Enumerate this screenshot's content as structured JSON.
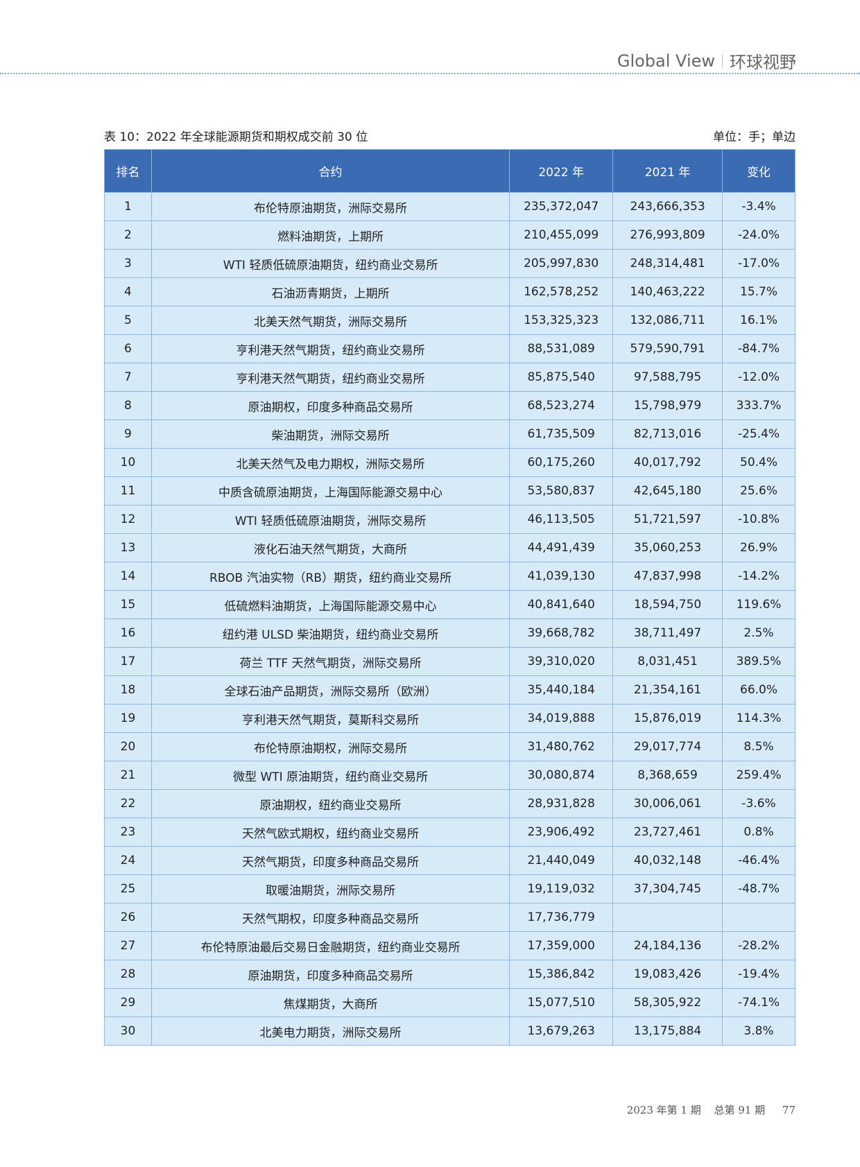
{
  "header": {
    "section_en": "Global View",
    "section_cn": "环球视野"
  },
  "table": {
    "caption": "表 10：2022 年全球能源期货和期权成交前 30 位",
    "unit": "单位：手；单边",
    "columns": [
      "排名",
      "合约",
      "2022 年",
      "2021 年",
      "变化"
    ],
    "rows": [
      [
        "1",
        "布伦特原油期货，洲际交易所",
        "235,372,047",
        "243,666,353",
        "-3.4%"
      ],
      [
        "2",
        "燃料油期货，上期所",
        "210,455,099",
        "276,993,809",
        "-24.0%"
      ],
      [
        "3",
        "WTI 轻质低硫原油期货，纽约商业交易所",
        "205,997,830",
        "248,314,481",
        "-17.0%"
      ],
      [
        "4",
        "石油沥青期货，上期所",
        "162,578,252",
        "140,463,222",
        "15.7%"
      ],
      [
        "5",
        "北美天然气期货，洲际交易所",
        "153,325,323",
        "132,086,711",
        "16.1%"
      ],
      [
        "6",
        "亨利港天然气期货，纽约商业交易所",
        "88,531,089",
        "579,590,791",
        "-84.7%"
      ],
      [
        "7",
        "亨利港天然气期货，纽约商业交易所",
        "85,875,540",
        "97,588,795",
        "-12.0%"
      ],
      [
        "8",
        "原油期权，印度多种商品交易所",
        "68,523,274",
        "15,798,979",
        "333.7%"
      ],
      [
        "9",
        "柴油期货，洲际交易所",
        "61,735,509",
        "82,713,016",
        "-25.4%"
      ],
      [
        "10",
        "北美天然气及电力期权，洲际交易所",
        "60,175,260",
        "40,017,792",
        "50.4%"
      ],
      [
        "11",
        "中质含硫原油期货，上海国际能源交易中心",
        "53,580,837",
        "42,645,180",
        "25.6%"
      ],
      [
        "12",
        "WTI 轻质低硫原油期货，洲际交易所",
        "46,113,505",
        "51,721,597",
        "-10.8%"
      ],
      [
        "13",
        "液化石油天然气期货，大商所",
        "44,491,439",
        "35,060,253",
        "26.9%"
      ],
      [
        "14",
        "RBOB 汽油实物（RB）期货，纽约商业交易所",
        "41,039,130",
        "47,837,998",
        "-14.2%"
      ],
      [
        "15",
        "低硫燃料油期货，上海国际能源交易中心",
        "40,841,640",
        "18,594,750",
        "119.6%"
      ],
      [
        "16",
        "纽约港 ULSD 柴油期货，纽约商业交易所",
        "39,668,782",
        "38,711,497",
        "2.5%"
      ],
      [
        "17",
        "荷兰 TTF 天然气期货，洲际交易所",
        "39,310,020",
        "8,031,451",
        "389.5%"
      ],
      [
        "18",
        "全球石油产品期货，洲际交易所（欧洲）",
        "35,440,184",
        "21,354,161",
        "66.0%"
      ],
      [
        "19",
        "亨利港天然气期货，莫斯科交易所",
        "34,019,888",
        "15,876,019",
        "114.3%"
      ],
      [
        "20",
        "布伦特原油期权，洲际交易所",
        "31,480,762",
        "29,017,774",
        "8.5%"
      ],
      [
        "21",
        "微型 WTI 原油期货，纽约商业交易所",
        "30,080,874",
        "8,368,659",
        "259.4%"
      ],
      [
        "22",
        "原油期权，纽约商业交易所",
        "28,931,828",
        "30,006,061",
        "-3.6%"
      ],
      [
        "23",
        "天然气欧式期权，纽约商业交易所",
        "23,906,492",
        "23,727,461",
        "0.8%"
      ],
      [
        "24",
        "天然气期货，印度多种商品交易所",
        "21,440,049",
        "40,032,148",
        "-46.4%"
      ],
      [
        "25",
        "取暖油期货，洲际交易所",
        "19,119,032",
        "37,304,745",
        "-48.7%"
      ],
      [
        "26",
        "天然气期权，印度多种商品交易所",
        "17,736,779",
        "",
        ""
      ],
      [
        "27",
        "布伦特原油最后交易日金融期货，纽约商业交易所",
        "17,359,000",
        "24,184,136",
        "-28.2%"
      ],
      [
        "28",
        "原油期货，印度多种商品交易所",
        "15,386,842",
        "19,083,426",
        "-19.4%"
      ],
      [
        "29",
        "焦煤期货，大商所",
        "15,077,510",
        "58,305,922",
        "-74.1%"
      ],
      [
        "30",
        "北美电力期货，洲际交易所",
        "13,679,263",
        "13,175,884",
        "3.8%"
      ]
    ]
  },
  "footer": {
    "issue": "2023 年第 1 期",
    "total": "总第 91 期",
    "page": "77"
  },
  "colors": {
    "header_bg": "#3a6bb3",
    "cell_bg": "#d6eaf8",
    "border": "#8fb8e8",
    "dash": "#5bc4e8"
  }
}
